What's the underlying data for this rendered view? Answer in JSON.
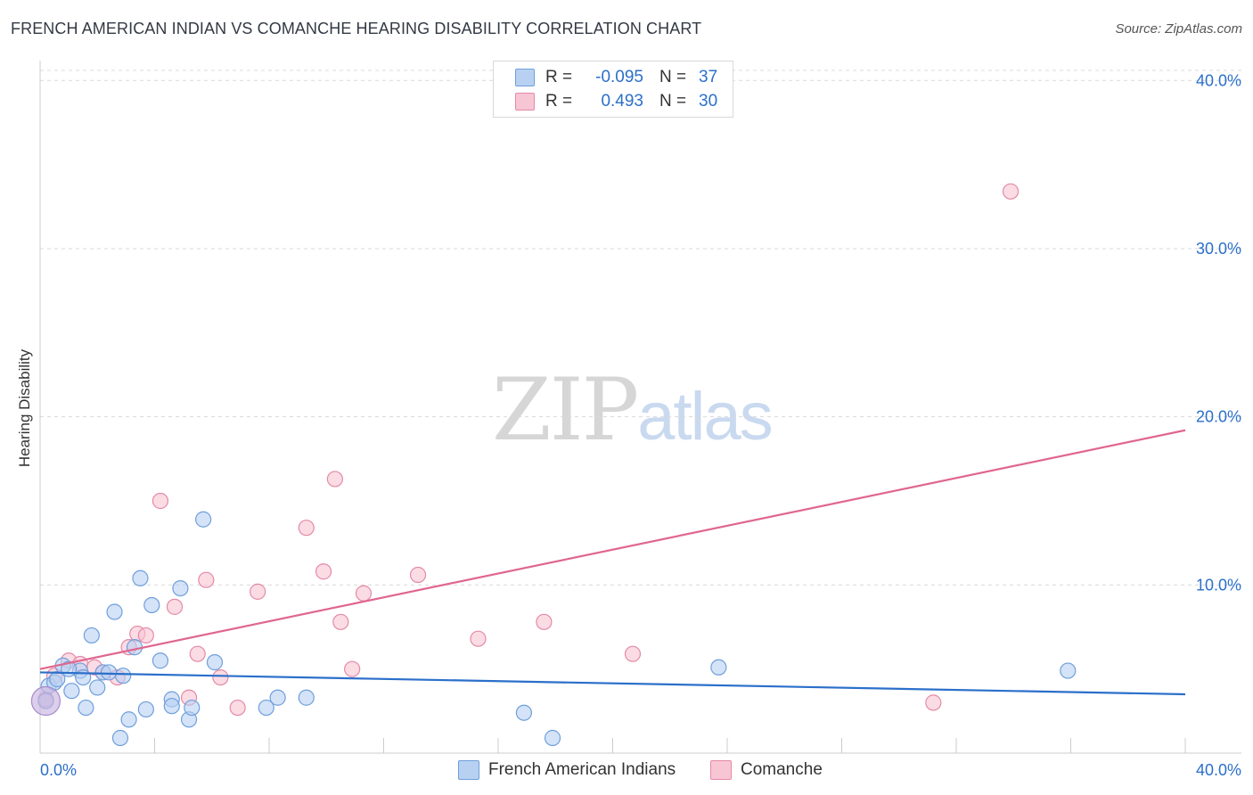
{
  "title": "FRENCH AMERICAN INDIAN VS COMANCHE HEARING DISABILITY CORRELATION CHART",
  "source": "Source: ZipAtlas.com",
  "watermark": {
    "zip": "ZIP",
    "atlas": "atlas"
  },
  "legend": [
    {
      "r_label": "R =",
      "r_value": "-0.095",
      "n_label": "N =",
      "n_value": "37"
    },
    {
      "r_label": "R =",
      "r_value": "0.493",
      "n_label": "N =",
      "n_value": "30"
    }
  ],
  "colors": {
    "blue_fill": "#b8d1f2",
    "blue_stroke": "#6f9fdc",
    "blue_line": "#2b6fca",
    "pink_fill": "#f8c5d4",
    "pink_stroke": "#e48aa6",
    "pink_line": "#e0668f",
    "grid": "#d9d9d9",
    "tick_label": "#2b6fca"
  },
  "chart_data": {
    "type": "scatter",
    "title": "FRENCH AMERICAN INDIAN VS COMANCHE HEARING DISABILITY CORRELATION CHART",
    "xlabel": "",
    "ylabel": "Hearing Disability",
    "xlim": [
      0,
      40
    ],
    "ylim": [
      0,
      41.5
    ],
    "x_tick_labels": [
      "0.0%",
      "40.0%"
    ],
    "y_ticks": [
      10,
      20,
      30,
      40
    ],
    "y_tick_labels": [
      "10.0%",
      "20.0%",
      "30.0%",
      "40.0%"
    ],
    "legend_position": "bottom-center",
    "series": [
      {
        "name": "French American Indians",
        "color": "#2b6fca",
        "trend": {
          "x": [
            0,
            40
          ],
          "y": [
            4.8,
            3.5
          ]
        },
        "points": [
          {
            "x": 0.3,
            "y": 4.0
          },
          {
            "x": 0.5,
            "y": 4.2
          },
          {
            "x": 0.6,
            "y": 4.4
          },
          {
            "x": 0.8,
            "y": 5.2
          },
          {
            "x": 1.1,
            "y": 3.7
          },
          {
            "x": 1.4,
            "y": 4.9
          },
          {
            "x": 1.5,
            "y": 4.5
          },
          {
            "x": 1.6,
            "y": 2.7
          },
          {
            "x": 1.8,
            "y": 7.0
          },
          {
            "x": 2.0,
            "y": 3.9
          },
          {
            "x": 2.2,
            "y": 4.8
          },
          {
            "x": 2.6,
            "y": 8.4
          },
          {
            "x": 2.9,
            "y": 4.6
          },
          {
            "x": 2.8,
            "y": 0.9
          },
          {
            "x": 3.1,
            "y": 2.0
          },
          {
            "x": 3.3,
            "y": 6.3
          },
          {
            "x": 3.5,
            "y": 10.4
          },
          {
            "x": 3.7,
            "y": 2.6
          },
          {
            "x": 3.9,
            "y": 8.8
          },
          {
            "x": 4.2,
            "y": 5.5
          },
          {
            "x": 4.6,
            "y": 3.2
          },
          {
            "x": 4.6,
            "y": 2.8
          },
          {
            "x": 4.9,
            "y": 9.8
          },
          {
            "x": 5.2,
            "y": 2.0
          },
          {
            "x": 5.3,
            "y": 2.7
          },
          {
            "x": 5.7,
            "y": 13.9
          },
          {
            "x": 6.1,
            "y": 5.4
          },
          {
            "x": 7.9,
            "y": 2.7
          },
          {
            "x": 8.3,
            "y": 3.3
          },
          {
            "x": 9.3,
            "y": 3.3
          },
          {
            "x": 16.9,
            "y": 2.4
          },
          {
            "x": 17.9,
            "y": 0.9
          },
          {
            "x": 23.7,
            "y": 5.1
          },
          {
            "x": 35.9,
            "y": 4.9
          },
          {
            "x": 1.0,
            "y": 5.0
          },
          {
            "x": 2.4,
            "y": 4.8
          },
          {
            "x": 0.2,
            "y": 3.1
          }
        ]
      },
      {
        "name": "Comanche",
        "color": "#e0668f",
        "trend": {
          "x": [
            0,
            40
          ],
          "y": [
            5.0,
            19.2
          ]
        },
        "points": [
          {
            "x": 0.2,
            "y": 3.2
          },
          {
            "x": 0.5,
            "y": 4.6
          },
          {
            "x": 1.0,
            "y": 5.5
          },
          {
            "x": 1.4,
            "y": 5.3
          },
          {
            "x": 1.9,
            "y": 5.1
          },
          {
            "x": 2.2,
            "y": 4.8
          },
          {
            "x": 2.7,
            "y": 4.5
          },
          {
            "x": 3.1,
            "y": 6.3
          },
          {
            "x": 3.4,
            "y": 7.1
          },
          {
            "x": 3.7,
            "y": 7.0
          },
          {
            "x": 4.2,
            "y": 15.0
          },
          {
            "x": 4.7,
            "y": 8.7
          },
          {
            "x": 5.2,
            "y": 3.3
          },
          {
            "x": 5.5,
            "y": 5.9
          },
          {
            "x": 5.8,
            "y": 10.3
          },
          {
            "x": 6.3,
            "y": 4.5
          },
          {
            "x": 6.9,
            "y": 2.7
          },
          {
            "x": 7.6,
            "y": 9.6
          },
          {
            "x": 9.3,
            "y": 13.4
          },
          {
            "x": 9.9,
            "y": 10.8
          },
          {
            "x": 10.3,
            "y": 16.3
          },
          {
            "x": 10.5,
            "y": 7.8
          },
          {
            "x": 10.9,
            "y": 5.0
          },
          {
            "x": 11.3,
            "y": 9.5
          },
          {
            "x": 13.2,
            "y": 10.6
          },
          {
            "x": 15.3,
            "y": 6.8
          },
          {
            "x": 17.6,
            "y": 7.8
          },
          {
            "x": 20.7,
            "y": 5.9
          },
          {
            "x": 31.2,
            "y": 3.0
          },
          {
            "x": 33.9,
            "y": 33.4
          }
        ]
      }
    ]
  }
}
